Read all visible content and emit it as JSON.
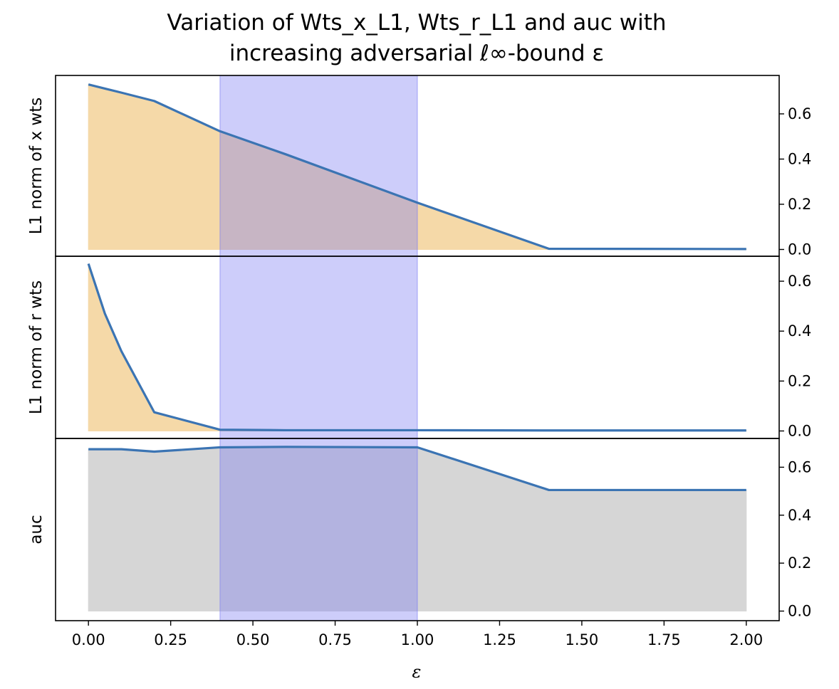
{
  "chart_data": {
    "type": "area",
    "title_lines": [
      "Variation of Wts_x_L1, Wts_r_L1 and auc with",
      "increasing adversarial ℓ∞-bound ε"
    ],
    "xlabel": "ε",
    "x_ticks": [
      "0.00",
      "0.25",
      "0.50",
      "0.75",
      "1.00",
      "1.25",
      "1.50",
      "1.75",
      "2.00"
    ],
    "xlim": [
      -0.1,
      2.1
    ],
    "shared_x": [
      0.0,
      0.05,
      0.1,
      0.2,
      0.4,
      0.6,
      1.0,
      1.4,
      2.0
    ],
    "highlight_span": [
      0.4,
      1.0
    ],
    "colors": {
      "line": "#3b74b3",
      "fill_weights": "#f5d9a8",
      "fill_auc": "#d6d6d6",
      "span": "#7b7bf2"
    },
    "panels": [
      {
        "ylabel": "L1 norm of x wts",
        "ylim": [
          -0.03,
          0.77
        ],
        "y_ticks": [
          "0.0",
          "0.2",
          "0.4",
          "0.6"
        ],
        "fill": "fill_weights",
        "series": [
          {
            "values": [
              0.73,
              0.712,
              0.694,
              0.657,
              0.523,
              0.421,
              0.207,
              0.003,
              0.002
            ]
          }
        ]
      },
      {
        "ylabel": "L1 norm of r wts",
        "ylim": [
          -0.03,
          0.7
        ],
        "y_ticks": [
          "0.0",
          "0.2",
          "0.4",
          "0.6"
        ],
        "fill": "fill_weights",
        "series": [
          {
            "values": [
              0.67,
              0.47,
              0.32,
              0.075,
              0.005,
              0.003,
              0.003,
              0.002,
              0.002
            ]
          }
        ]
      },
      {
        "ylabel": "auc",
        "ylim": [
          -0.04,
          0.72
        ],
        "y_ticks": [
          "0.0",
          "0.2",
          "0.4",
          "0.6"
        ],
        "fill": "fill_auc",
        "series": [
          {
            "values": [
              0.675,
              0.675,
              0.675,
              0.665,
              0.683,
              0.685,
              0.683,
              0.505,
              0.505
            ]
          }
        ]
      }
    ]
  }
}
